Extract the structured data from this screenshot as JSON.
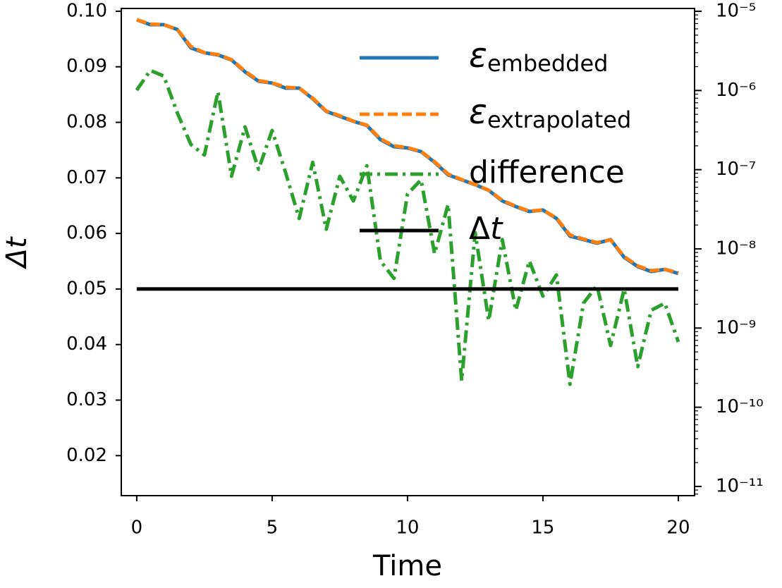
{
  "chart_data": {
    "type": "line",
    "xlabel": "Time",
    "ylabel": "Δt",
    "x": [
      0,
      0.5,
      1,
      1.5,
      2,
      2.5,
      3,
      3.5,
      4,
      4.5,
      5,
      5.5,
      6,
      6.5,
      7,
      7.5,
      8,
      8.5,
      9,
      9.5,
      10,
      10.5,
      11,
      11.5,
      12,
      12.5,
      13,
      13.5,
      14,
      14.5,
      15,
      15.5,
      16,
      16.5,
      17,
      17.5,
      18,
      18.5,
      19,
      19.5,
      20
    ],
    "xlim": [
      -0.57,
      20.6
    ],
    "xticks": [
      0,
      5,
      10,
      15,
      20
    ],
    "ylim": [
      0.0128,
      0.1005
    ],
    "yticks": [
      {
        "value": 0.02,
        "label": "0.02"
      },
      {
        "value": 0.03,
        "label": "0.03"
      },
      {
        "value": 0.04,
        "label": "0.04"
      },
      {
        "value": 0.05,
        "label": "0.05"
      },
      {
        "value": 0.06,
        "label": "0.06"
      },
      {
        "value": 0.07,
        "label": "0.07"
      },
      {
        "value": 0.08,
        "label": "0.08"
      },
      {
        "value": 0.09,
        "label": "0.09"
      },
      {
        "value": 0.1,
        "label": "0.10"
      }
    ],
    "y2lim": [
      7.65e-12,
      1.086e-05
    ],
    "y2scale": "log",
    "y2ticks": [
      {
        "value": 1e-11,
        "label": "10⁻¹¹"
      },
      {
        "value": 1e-10,
        "label": "10⁻¹⁰"
      },
      {
        "value": 1e-09,
        "label": "10⁻⁹"
      },
      {
        "value": 1e-08,
        "label": "10⁻⁸"
      },
      {
        "value": 1e-07,
        "label": "10⁻⁷"
      },
      {
        "value": 1e-06,
        "label": "10⁻⁶"
      },
      {
        "value": 1e-05,
        "label": "10⁻⁵"
      }
    ],
    "legend": "upper right",
    "series": [
      {
        "name": "εembedded",
        "color": "#1f77b4",
        "style": "solid",
        "axis": "y2",
        "values": [
          7.82e-06,
          6.78e-06,
          6.78e-06,
          5.88e-06,
          3.45e-06,
          2.99e-06,
          2.81e-06,
          2.43e-06,
          1.72e-06,
          1.31e-06,
          1.24e-06,
          1.07e-06,
          1.07e-06,
          7.87e-07,
          5.44e-07,
          4.72e-07,
          4.09e-07,
          3.61e-07,
          2.4e-07,
          1.95e-07,
          1.88e-07,
          1.69e-07,
          1.24e-07,
          8.6e-08,
          7.45e-08,
          6.46e-08,
          5.48e-08,
          4.03e-08,
          3.42e-08,
          2.96e-08,
          3.09e-08,
          2.42e-08,
          1.45e-08,
          1.31e-08,
          1.18e-08,
          1.31e-08,
          7.82e-09,
          5.98e-09,
          5.18e-09,
          5.52e-09,
          4.88e-09
        ]
      },
      {
        "name": "εextrapolated",
        "color": "#ff7f0e",
        "style": "dashed",
        "axis": "y2",
        "values": [
          7.82e-06,
          6.9e-06,
          6.78e-06,
          5.9e-06,
          3.6e-06,
          3e-06,
          2.85e-06,
          2.45e-06,
          1.75e-06,
          1.33e-06,
          1.25e-06,
          1.1e-06,
          1.07e-06,
          8e-07,
          5.5e-07,
          4.8e-07,
          4.1e-07,
          3.65e-07,
          2.45e-07,
          2e-07,
          1.9e-07,
          1.7e-07,
          1.26e-07,
          8.8e-08,
          7.5e-08,
          6.5e-08,
          5.5e-08,
          4.1e-08,
          3.45e-08,
          3e-08,
          3.1e-08,
          2.45e-08,
          1.5e-08,
          1.33e-08,
          1.2e-08,
          1.3e-08,
          8e-09,
          6.1e-09,
          5.3e-09,
          5.5e-09,
          5e-09
        ]
      },
      {
        "name": "difference",
        "color": "#2ca02c",
        "style": "dashdot",
        "axis": "y2",
        "values": [
          1.01e-06,
          1.79e-06,
          1.52e-06,
          5.22e-07,
          2.08e-07,
          1.53e-07,
          9.66e-07,
          8.26e-08,
          3.47e-07,
          1.01e-07,
          3.13e-07,
          9.14e-08,
          2.42e-08,
          1.24e-07,
          1.77e-08,
          8.26e-08,
          4.03e-08,
          1.12e-07,
          7.06e-09,
          4.23e-09,
          4.94e-08,
          7.45e-08,
          8.67e-09,
          3.64e-08,
          2.16e-10,
          1.6e-08,
          1.24e-09,
          1.31e-08,
          1.68e-09,
          7.06e-09,
          2.53e-09,
          4.69e-09,
          1.95e-10,
          2.06e-09,
          3.44e-09,
          6.03e-10,
          3.11e-09,
          3.26e-10,
          1.68e-09,
          2.06e-09,
          6.68e-10
        ]
      },
      {
        "name": "Δt",
        "color": "#000000",
        "style": "solid",
        "axis": "y",
        "x": [
          0,
          20
        ],
        "values": [
          0.05,
          0.05
        ]
      }
    ]
  }
}
